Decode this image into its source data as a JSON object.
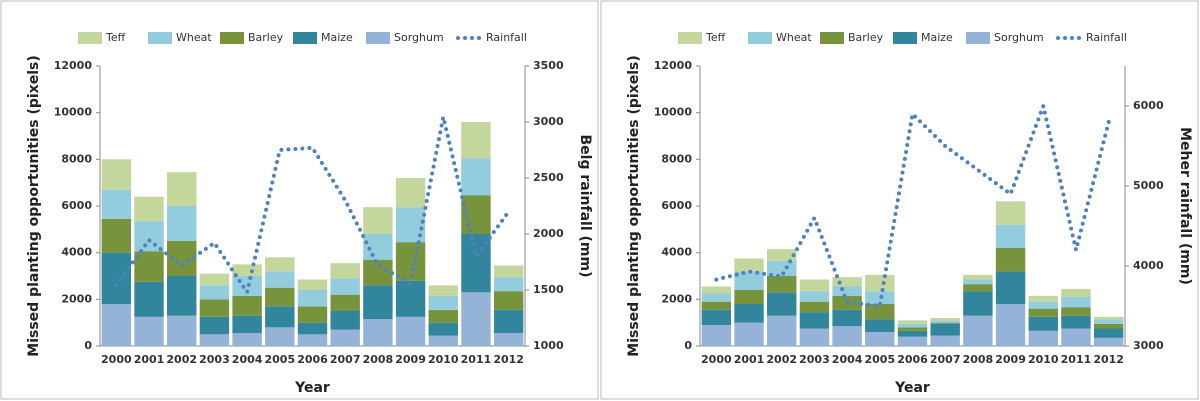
{
  "chart_data": [
    {
      "type": "bar",
      "x_label": "Year",
      "y_label": "Missed planting opportunities (pixels)",
      "y2_label": "Belg rainfall (mm)",
      "categories": [
        "2000",
        "2001",
        "2002",
        "2003",
        "2004",
        "2005",
        "2006",
        "2007",
        "2008",
        "2009",
        "2010",
        "2011",
        "2012"
      ],
      "ylim": [
        0,
        12000
      ],
      "yticks": [
        0,
        2000,
        4000,
        6000,
        8000,
        10000,
        12000
      ],
      "y2lim": [
        1000,
        3500
      ],
      "y2ticks": [
        1000,
        1500,
        2000,
        2500,
        3000,
        3500
      ],
      "series": [
        {
          "name": "Teff",
          "color": "#c3d69b",
          "values": [
            1300,
            1050,
            1450,
            500,
            500,
            600,
            450,
            650,
            1150,
            1250,
            450,
            1550,
            500
          ]
        },
        {
          "name": "Wheat",
          "color": "#93cddd",
          "values": [
            1250,
            1300,
            1500,
            600,
            850,
            700,
            700,
            700,
            1100,
            1500,
            600,
            1600,
            600
          ]
        },
        {
          "name": "Barley",
          "color": "#77933c",
          "values": [
            1450,
            1300,
            1500,
            750,
            850,
            800,
            700,
            700,
            1100,
            1650,
            550,
            1650,
            800
          ]
        },
        {
          "name": "Maize",
          "color": "#31859c",
          "values": [
            2200,
            1500,
            1700,
            750,
            750,
            900,
            500,
            800,
            1450,
            1550,
            550,
            2500,
            1000
          ]
        },
        {
          "name": "Sorghum",
          "color": "#95b3d7",
          "values": [
            1800,
            1250,
            1300,
            500,
            550,
            800,
            500,
            700,
            1150,
            1250,
            450,
            2300,
            550
          ]
        },
        {
          "name": "Rainfall",
          "color": "#4f81bd",
          "type": "line",
          "axis": "y2",
          "values": [
            1545,
            1945,
            1720,
            1920,
            1480,
            2750,
            2770,
            2300,
            1720,
            1560,
            3045,
            1800,
            2200
          ]
        }
      ]
    },
    {
      "type": "bar",
      "x_label": "Year",
      "y_label": "Missed planting opportunities (pixels)",
      "y2_label": "Meher rainfall (mm)",
      "categories": [
        "2000",
        "2001",
        "2002",
        "2003",
        "2004",
        "2005",
        "2006",
        "2007",
        "2008",
        "2009",
        "2010",
        "2011",
        "2012"
      ],
      "ylim": [
        0,
        12000
      ],
      "yticks": [
        0,
        2000,
        4000,
        6000,
        8000,
        10000,
        12000
      ],
      "y2lim": [
        3000,
        6500
      ],
      "y2ticks": [
        3000,
        4000,
        5000,
        6000
      ],
      "series": [
        {
          "name": "Teff",
          "color": "#c3d69b",
          "values": [
            300,
            550,
            500,
            500,
            400,
            700,
            150,
            100,
            200,
            1000,
            250,
            350,
            100
          ]
        },
        {
          "name": "Wheat",
          "color": "#93cddd",
          "values": [
            350,
            800,
            650,
            450,
            400,
            550,
            150,
            100,
            200,
            1000,
            300,
            450,
            200
          ]
        },
        {
          "name": "Barley",
          "color": "#77933c",
          "values": [
            350,
            600,
            700,
            450,
            600,
            650,
            150,
            50,
            300,
            1000,
            350,
            350,
            200
          ]
        },
        {
          "name": "Maize",
          "color": "#31859c",
          "values": [
            650,
            800,
            1000,
            700,
            700,
            550,
            250,
            500,
            1050,
            1400,
            600,
            550,
            400
          ]
        },
        {
          "name": "Sorghum",
          "color": "#95b3d7",
          "values": [
            900,
            1000,
            1300,
            750,
            850,
            600,
            400,
            450,
            1300,
            1800,
            650,
            750,
            350
          ]
        },
        {
          "name": "Rainfall",
          "color": "#4f81bd",
          "type": "line",
          "axis": "y2",
          "values": [
            3830,
            3930,
            3870,
            4600,
            3550,
            3500,
            5900,
            5500,
            5200,
            4900,
            6000,
            4200,
            5800
          ]
        }
      ]
    }
  ]
}
